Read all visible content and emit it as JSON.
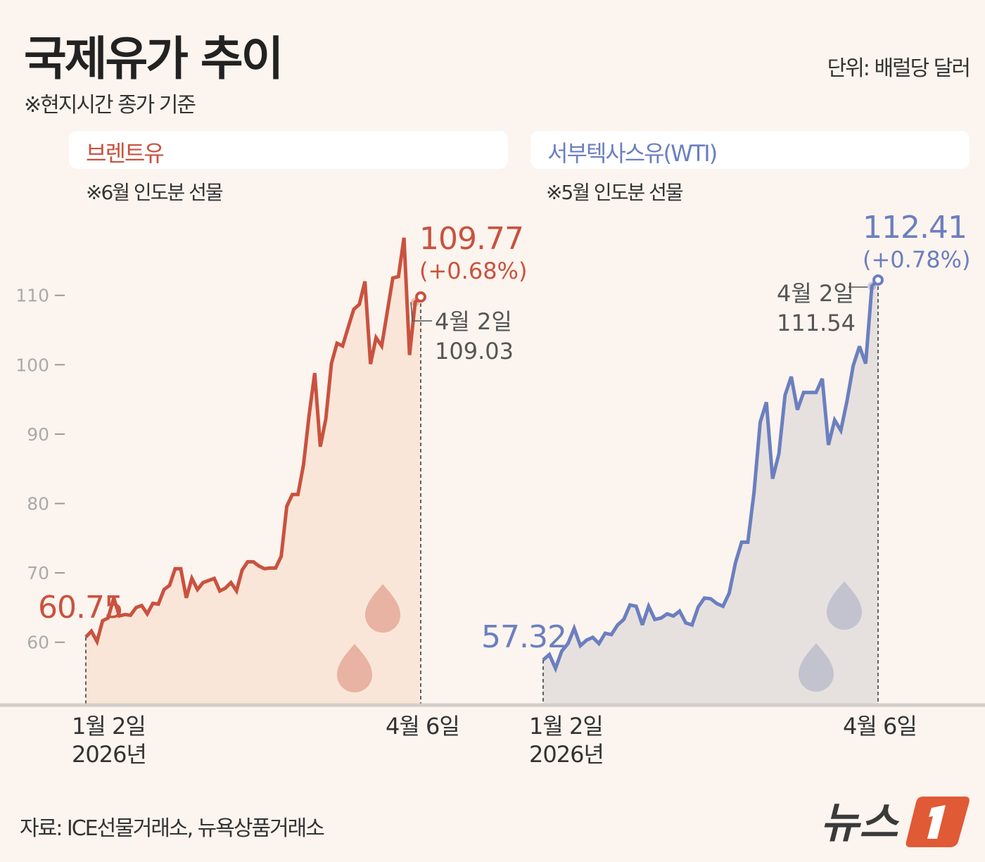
{
  "header": {
    "title": "국제유가 추이",
    "subtitle": "※현지시간 종가 기준",
    "unit": "단위: 배럴당 달러"
  },
  "colors": {
    "background": "#fcf4ee",
    "brent": "#c9523f",
    "brent_fill": "#fae6d8",
    "wti": "#6b7fc0",
    "wti_fill": "#e6e1de"
  },
  "chart_data": [
    {
      "type": "area",
      "title": "브렌트유",
      "note": "※6월 인도분 선물",
      "yticks": [
        60,
        70,
        80,
        90,
        100,
        110
      ],
      "x_labels": {
        "start_date": "1월 2일",
        "start_year": "2026년",
        "end_date": "4월 6일"
      },
      "series": [
        {
          "name": "브렌트유",
          "values": [
            60.75,
            61.6,
            60.1,
            63.1,
            63.5,
            66.4,
            63.8,
            64.0,
            63.9,
            65.0,
            65.3,
            64.1,
            65.6,
            65.5,
            67.6,
            68.2,
            70.6,
            70.6,
            66.4,
            69.2,
            67.6,
            68.6,
            68.9,
            69.2,
            67.4,
            67.8,
            68.6,
            67.4,
            70.4,
            71.6,
            71.6,
            71.0,
            70.6,
            70.7,
            70.7,
            72.4,
            79.6,
            81.3,
            81.3,
            85.6,
            92.7,
            98.8,
            88.2,
            92.2,
            100.2,
            103.1,
            102.7,
            105.4,
            108.0,
            108.7,
            112.0,
            100.1,
            103.9,
            102.7,
            107.6,
            112.5,
            112.7,
            118.3,
            101.4,
            109.03,
            109.77
          ]
        }
      ],
      "start_label": "60.75",
      "end_label": "109.77",
      "end_change": "(+0.68%)",
      "prev_date": "4월 2일",
      "prev_value": "109.03"
    },
    {
      "type": "area",
      "title": "서부텍사스유(WTI)",
      "note": "※5월 인도분 선물",
      "x_labels": {
        "start_date": "1월 2일",
        "start_year": "2026년",
        "end_date": "4월 6일"
      },
      "series": [
        {
          "name": "서부텍사스유(WTI)",
          "values": [
            57.32,
            58.1,
            56.1,
            58.6,
            59.7,
            61.9,
            59.4,
            60.2,
            60.6,
            59.7,
            61.2,
            61.0,
            62.4,
            63.2,
            65.3,
            65.1,
            62.4,
            65.1,
            63.2,
            63.4,
            64.0,
            63.7,
            64.4,
            62.7,
            62.4,
            65.0,
            66.3,
            66.2,
            65.5,
            65.1,
            67.0,
            71.4,
            74.4,
            74.4,
            81.6,
            91.8,
            94.7,
            83.6,
            87.2,
            95.7,
            98.4,
            93.6,
            96.1,
            96.1,
            96.1,
            98.1,
            88.5,
            92.1,
            90.6,
            94.9,
            100.0,
            102.8,
            100.3,
            111.54,
            112.41
          ]
        }
      ],
      "start_label": "57.32",
      "end_label": "112.41",
      "end_change": "(+0.78%)",
      "prev_date": "4월 2일",
      "prev_value": "111.54"
    }
  ],
  "footer": {
    "source": "자료: ICE선물거래소, 뉴욕상품거래소",
    "logo_text": "뉴스1"
  }
}
